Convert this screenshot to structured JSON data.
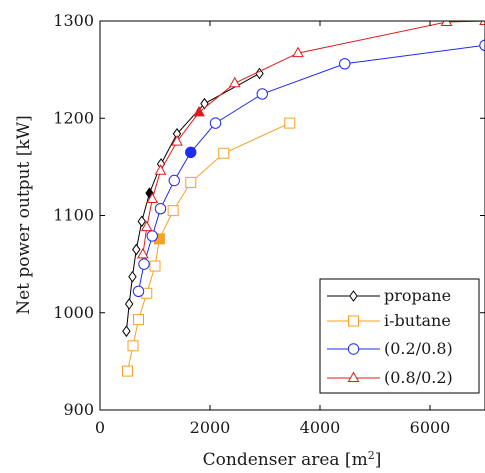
{
  "chart_data": {
    "type": "line",
    "xlabel": "Condenser area [m²]",
    "xlabel_base": "Condenser area [m",
    "xlabel_sup": "2",
    "xlabel_end": "]",
    "ylabel": "Net power output [kW]",
    "xlim": [
      0,
      7000
    ],
    "ylim": [
      900,
      1300
    ],
    "xticks": [
      0,
      2000,
      4000,
      6000
    ],
    "yticks": [
      900,
      1000,
      1100,
      1200,
      1300
    ],
    "grid": false,
    "legend_position": "bottom-right",
    "series": [
      {
        "name": "propane",
        "color": "#000000",
        "marker": "diamond",
        "points": [
          [
            480,
            981
          ],
          [
            530,
            1009
          ],
          [
            590,
            1037
          ],
          [
            660,
            1065
          ],
          [
            760,
            1094
          ],
          [
            900,
            1123
          ],
          [
            1110,
            1153
          ],
          [
            1400,
            1184
          ],
          [
            1900,
            1215
          ],
          [
            2900,
            1246
          ]
        ],
        "highlight": [
          900,
          1123
        ]
      },
      {
        "name": "i-butane",
        "color": "#f5a126",
        "marker": "square",
        "points": [
          [
            500,
            940
          ],
          [
            600,
            966
          ],
          [
            700,
            993
          ],
          [
            850,
            1020
          ],
          [
            1000,
            1048
          ],
          [
            1080,
            1076
          ],
          [
            1330,
            1105
          ],
          [
            1650,
            1134
          ],
          [
            2250,
            1164
          ],
          [
            3450,
            1195
          ]
        ],
        "highlight": [
          1080,
          1076
        ]
      },
      {
        "name": "(0.2/0.8)",
        "color": "#1f2cf0",
        "marker": "circle",
        "points": [
          [
            700,
            1022
          ],
          [
            800,
            1050
          ],
          [
            950,
            1079
          ],
          [
            1100,
            1107
          ],
          [
            1350,
            1136
          ],
          [
            1650,
            1165
          ],
          [
            2100,
            1195
          ],
          [
            2950,
            1225
          ],
          [
            4450,
            1256
          ],
          [
            7000,
            1275
          ]
        ],
        "highlight": [
          1650,
          1165
        ]
      },
      {
        "name": "(0.8/0.2)",
        "color": "#e01b1b",
        "marker": "triangle",
        "points": [
          [
            780,
            1060
          ],
          [
            850,
            1088
          ],
          [
            950,
            1117
          ],
          [
            1100,
            1146
          ],
          [
            1400,
            1176
          ],
          [
            1800,
            1206
          ],
          [
            2450,
            1236
          ],
          [
            3600,
            1267
          ],
          [
            6300,
            1299
          ],
          [
            7000,
            1300
          ]
        ],
        "highlight": [
          1800,
          1206
        ]
      }
    ]
  }
}
